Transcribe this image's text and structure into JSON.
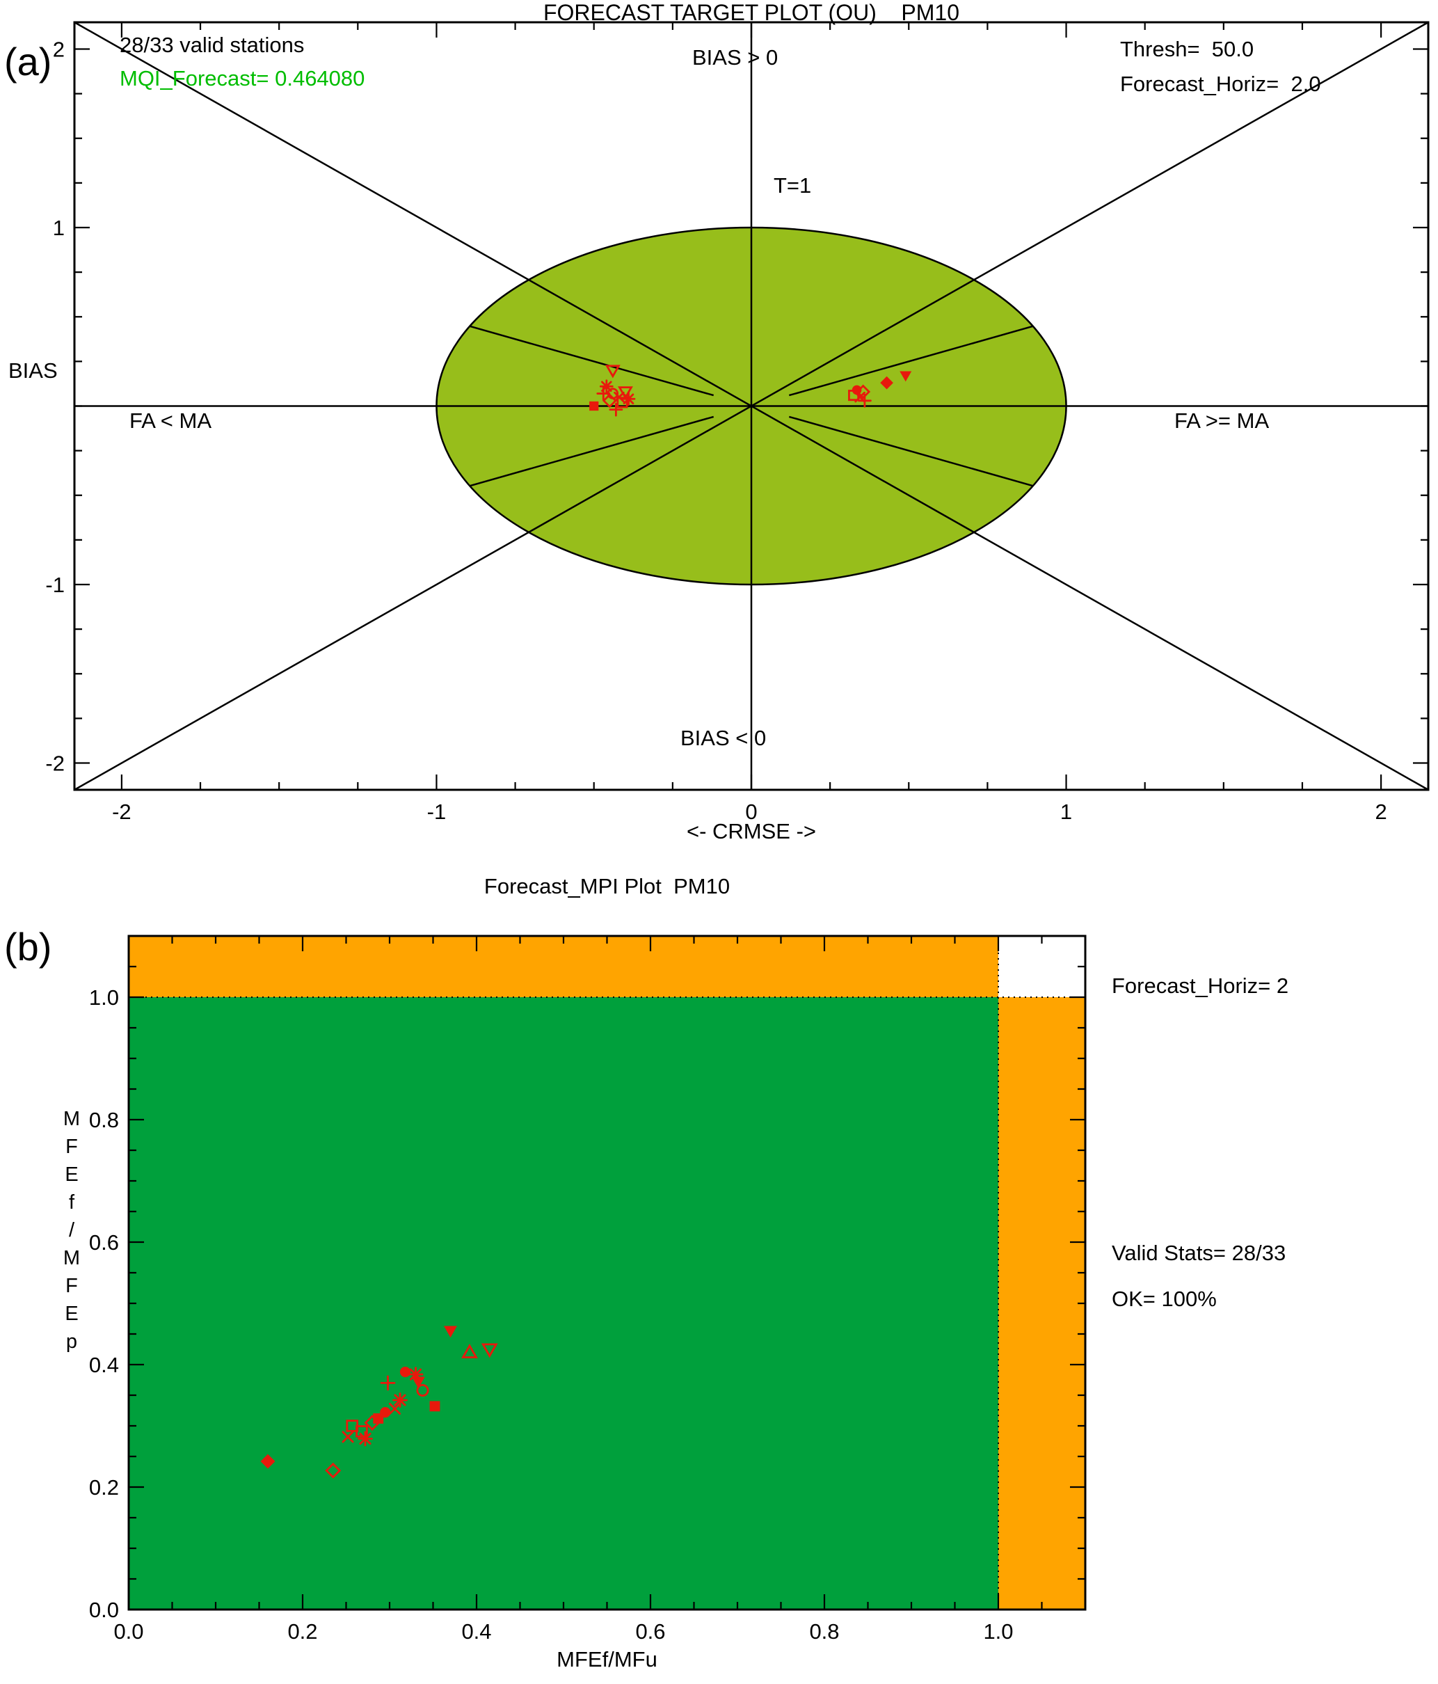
{
  "figure": {
    "panel_a_label": "(a)",
    "panel_b_label": "(b)",
    "background": "#ffffff"
  },
  "chart_data": [
    {
      "id": "forecast_target_plot",
      "type": "scatter",
      "title": "FORECAST TARGET PLOT (OU)    PM10",
      "xlabel": "<- CRMSE ->",
      "ylabel": "BIAS",
      "xlim": [
        -2.15,
        2.15
      ],
      "ylim": [
        -2.15,
        2.15
      ],
      "xtick_values": [
        -2,
        -1,
        0,
        1,
        2
      ],
      "xtick_labels": [
        "-2",
        "-1",
        "0",
        "1",
        "2"
      ],
      "ytick_values": [
        2,
        1,
        -1,
        -2
      ],
      "ytick_labels": [
        "2",
        "1",
        "-1",
        "-2"
      ],
      "minor_tick_step": 0.25,
      "grid": false,
      "target_circle": {
        "radius": 1,
        "fill": "#97BE1B"
      },
      "guide_lines": {
        "diagonals": true,
        "half_slope": 0.5,
        "half_slope_inner_x": 0.12,
        "half_slope_outer_x": 0.894
      },
      "marker_color": "#E8190C",
      "annotations": {
        "stations": "28/33 valid stations",
        "mqi": "MQI_Forecast= 0.464080",
        "thresh": "Thresh=  50.0",
        "horiz": "Forecast_Horiz=  2.0",
        "bias_pos": "BIAS > 0",
        "bias_neg": "BIAS < 0",
        "fa_lt": "FA < MA",
        "fa_ge": "FA >= MA",
        "t1": "T=1"
      },
      "annotation_colors": {
        "mqi": "#00BD00",
        "default": "#000000"
      },
      "points": [
        {
          "x": -0.5,
          "y": 0.0,
          "m": "square-filled"
        },
        {
          "x": -0.47,
          "y": 0.07,
          "m": "plus"
        },
        {
          "x": -0.46,
          "y": 0.11,
          "m": "asterisk"
        },
        {
          "x": -0.45,
          "y": 0.03,
          "m": "diamond-open"
        },
        {
          "x": -0.44,
          "y": 0.2,
          "m": "triangle-down-open"
        },
        {
          "x": -0.44,
          "y": 0.07,
          "m": "circle-open"
        },
        {
          "x": -0.43,
          "y": -0.02,
          "m": "plus"
        },
        {
          "x": -0.42,
          "y": 0.05,
          "m": "x"
        },
        {
          "x": -0.41,
          "y": 0.02,
          "m": "square-open"
        },
        {
          "x": -0.4,
          "y": 0.08,
          "m": "triangle-down-open"
        },
        {
          "x": -0.39,
          "y": 0.04,
          "m": "asterisk"
        },
        {
          "x": 0.325,
          "y": 0.06,
          "m": "square-open"
        },
        {
          "x": 0.335,
          "y": 0.09,
          "m": "circle-filled"
        },
        {
          "x": 0.345,
          "y": 0.05,
          "m": "x"
        },
        {
          "x": 0.355,
          "y": 0.08,
          "m": "diamond-open"
        },
        {
          "x": 0.36,
          "y": 0.03,
          "m": "plus"
        },
        {
          "x": 0.43,
          "y": 0.13,
          "m": "diamond-filled"
        },
        {
          "x": 0.49,
          "y": 0.17,
          "m": "triangle-down-filled"
        }
      ]
    },
    {
      "id": "forecast_mpi_plot",
      "type": "scatter",
      "title": "Forecast_MPI Plot  PM10",
      "xlabel": "MFEf/MFu",
      "ylabel_stacked": "M\nF\nE\nf\n/\nM\nF\nE\np",
      "xlim": [
        0,
        1.1
      ],
      "ylim": [
        0,
        1.1
      ],
      "xtick_values": [
        0,
        0.2,
        0.4,
        0.6,
        0.8,
        1.0
      ],
      "xtick_labels": [
        "0.0",
        "0.2",
        "0.4",
        "0.6",
        "0.8",
        "1.0"
      ],
      "ytick_values": [
        0,
        0.2,
        0.4,
        0.6,
        0.8,
        1.0
      ],
      "ytick_labels": [
        "0.0",
        "0.2",
        "0.4",
        "0.6",
        "0.8",
        "1.0"
      ],
      "minor_tick_step": 0.05,
      "grid": false,
      "regions": {
        "green": {
          "x": [
            0,
            1
          ],
          "y": [
            0,
            1
          ],
          "color": "#00A03C"
        },
        "orange-top": {
          "x": [
            0,
            1
          ],
          "y": [
            1,
            1.1
          ],
          "color": "#FFA400"
        },
        "orange-right": {
          "x": [
            1,
            1.1
          ],
          "y": [
            0,
            1
          ],
          "color": "#FFA400"
        }
      },
      "dotted_lines": {
        "x": 1.0,
        "y": 1.0
      },
      "marker_color": "#E8190C",
      "annotations": {
        "horiz": "Forecast_Horiz= 2",
        "valid": "Valid Stats= 28/33",
        "ok": "OK= 100%"
      },
      "points": [
        {
          "x": 0.16,
          "y": 0.242,
          "m": "diamond-filled"
        },
        {
          "x": 0.235,
          "y": 0.227,
          "m": "diamond-open"
        },
        {
          "x": 0.252,
          "y": 0.282,
          "m": "x"
        },
        {
          "x": 0.257,
          "y": 0.3,
          "m": "square-open"
        },
        {
          "x": 0.268,
          "y": 0.291,
          "m": "square-open"
        },
        {
          "x": 0.272,
          "y": 0.279,
          "m": "asterisk"
        },
        {
          "x": 0.28,
          "y": 0.305,
          "m": "diamond-open"
        },
        {
          "x": 0.287,
          "y": 0.312,
          "m": "square-filled"
        },
        {
          "x": 0.295,
          "y": 0.322,
          "m": "circle-filled"
        },
        {
          "x": 0.298,
          "y": 0.37,
          "m": "plus"
        },
        {
          "x": 0.306,
          "y": 0.328,
          "m": "x"
        },
        {
          "x": 0.312,
          "y": 0.342,
          "m": "asterisk"
        },
        {
          "x": 0.318,
          "y": 0.388,
          "m": "circle-filled"
        },
        {
          "x": 0.33,
          "y": 0.384,
          "m": "asterisk"
        },
        {
          "x": 0.333,
          "y": 0.372,
          "m": "triangle-down-filled"
        },
        {
          "x": 0.338,
          "y": 0.358,
          "m": "circle-open"
        },
        {
          "x": 0.352,
          "y": 0.332,
          "m": "square-filled"
        },
        {
          "x": 0.37,
          "y": 0.455,
          "m": "triangle-down-filled"
        },
        {
          "x": 0.392,
          "y": 0.42,
          "m": "triangle-up-open"
        },
        {
          "x": 0.415,
          "y": 0.425,
          "m": "triangle-down-open"
        }
      ]
    }
  ]
}
